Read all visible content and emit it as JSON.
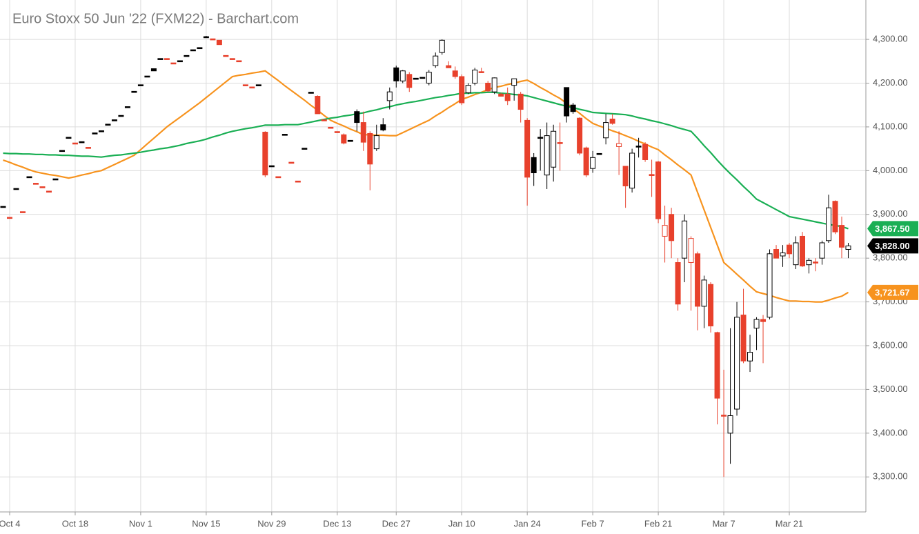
{
  "chart_data": {
    "type": "candlestick",
    "title": "Euro Stoxx 50 Jun '22 (FXM22) - Barchart.com",
    "categories": [
      null,
      "Oct 4",
      null,
      null,
      null,
      null,
      null,
      null,
      null,
      null,
      null,
      "Oct 18",
      null,
      null,
      null,
      null,
      null,
      null,
      null,
      null,
      null,
      "Nov 1",
      null,
      null,
      null,
      null,
      null,
      null,
      null,
      null,
      null,
      "Nov 15",
      null,
      null,
      null,
      null,
      null,
      null,
      null,
      null,
      null,
      "Nov 29",
      null,
      null,
      null,
      null,
      null,
      null,
      null,
      null,
      null,
      "Dec 13",
      null,
      null,
      null,
      null,
      null,
      null,
      null,
      null,
      "Dec 27",
      null,
      null,
      null,
      null,
      null,
      null,
      null,
      null,
      null,
      "Jan 10",
      null,
      null,
      null,
      null,
      null,
      null,
      null,
      null,
      null,
      "Jan 24",
      null,
      null,
      null,
      null,
      null,
      null,
      null,
      null,
      null,
      "Feb 7",
      null,
      null,
      null,
      null,
      null,
      null,
      null,
      null,
      null,
      "Feb 21",
      null,
      null,
      null,
      null,
      null,
      null,
      null,
      null,
      null,
      "Mar 7",
      null,
      null,
      null,
      null,
      null,
      null,
      null,
      null,
      null,
      "Mar 21",
      null,
      null,
      null,
      null,
      null,
      null,
      null,
      null,
      null
    ],
    "ohlc": [
      [
        3917,
        3917,
        3917,
        3917
      ],
      [
        3892,
        3892,
        3890,
        3890
      ],
      [
        3958,
        3958,
        3958,
        3958
      ],
      [
        3905,
        3905,
        3905,
        3905
      ],
      [
        3985,
        3985,
        3985,
        3985
      ],
      [
        3970,
        3970,
        3970,
        3970
      ],
      [
        3962,
        3962,
        3962,
        3962
      ],
      [
        3952,
        3952,
        3952,
        3952
      ],
      [
        3980,
        3980,
        3980,
        3980
      ],
      [
        4045,
        4045,
        4045,
        4045
      ],
      [
        4075,
        4075,
        4075,
        4075
      ],
      [
        4062,
        4062,
        4062,
        4062
      ],
      [
        4065,
        4065,
        4065,
        4065
      ],
      [
        4052,
        4052,
        4052,
        4052
      ],
      [
        4085,
        4085,
        4085,
        4085
      ],
      [
        4090,
        4090,
        4090,
        4090
      ],
      [
        4105,
        4105,
        4105,
        4105
      ],
      [
        4115,
        4115,
        4115,
        4115
      ],
      [
        4125,
        4125,
        4125,
        4125
      ],
      [
        4145,
        4145,
        4145,
        4145
      ],
      [
        4180,
        4180,
        4180,
        4180
      ],
      [
        4195,
        4195,
        4195,
        4195
      ],
      [
        4215,
        4215,
        4215,
        4215
      ],
      [
        4233,
        4233,
        4228,
        4228
      ],
      [
        4255,
        4255,
        4255,
        4255
      ],
      [
        4255,
        4255,
        4253,
        4253
      ],
      [
        4245,
        4245,
        4245,
        4245
      ],
      [
        4250,
        4250,
        4250,
        4250
      ],
      [
        4262,
        4262,
        4262,
        4262
      ],
      [
        4275,
        4275,
        4275,
        4275
      ],
      [
        4280,
        4280,
        4280,
        4280
      ],
      [
        4305,
        4308,
        4305,
        4305
      ],
      [
        4300,
        4300,
        4300,
        4300
      ],
      [
        4298,
        4298,
        4288,
        4288
      ],
      [
        4262,
        4262,
        4262,
        4262
      ],
      [
        4255,
        4255,
        4255,
        4255
      ],
      [
        4250,
        4250,
        4250,
        4250
      ],
      [
        4195,
        4195,
        4195,
        4195
      ],
      [
        4190,
        4190,
        4190,
        4190
      ],
      [
        4195,
        4195,
        4195,
        4195
      ],
      [
        4088,
        4090,
        3985,
        3990
      ],
      [
        4010,
        4010,
        4010,
        4010
      ],
      [
        3985,
        3985,
        3985,
        3985
      ],
      [
        4082,
        4082,
        4082,
        4082
      ],
      [
        4018,
        4018,
        4018,
        4018
      ],
      [
        3975,
        3975,
        3975,
        3975
      ],
      [
        4050,
        4050,
        4050,
        4050
      ],
      [
        4178,
        4178,
        4178,
        4178
      ],
      [
        4170,
        4172,
        4130,
        4130
      ],
      [
        4115,
        4115,
        4115,
        4115
      ],
      [
        4098,
        4098,
        4098,
        4098
      ],
      [
        4088,
        4088,
        4088,
        4088
      ],
      [
        4082,
        4085,
        4060,
        4063
      ],
      [
        4068,
        4068,
        4068,
        4068
      ],
      [
        4135,
        4140,
        4090,
        4110
      ],
      [
        4110,
        4135,
        4045,
        4065
      ],
      [
        4085,
        4090,
        3955,
        4015
      ],
      [
        4050,
        4105,
        4045,
        4080
      ],
      [
        4105,
        4120,
        4090,
        4093
      ],
      [
        4160,
        4190,
        4140,
        4180
      ],
      [
        4235,
        4240,
        4190,
        4205
      ],
      [
        4205,
        4230,
        4200,
        4228
      ],
      [
        4220,
        4225,
        4180,
        4190
      ],
      [
        4210,
        4210,
        4210,
        4210
      ],
      [
        4212,
        4212,
        4212,
        4212
      ],
      [
        4200,
        4230,
        4195,
        4225
      ],
      [
        4240,
        4270,
        4235,
        4262
      ],
      [
        4270,
        4300,
        4265,
        4298
      ],
      [
        4240,
        4250,
        4235,
        4235
      ],
      [
        4228,
        4238,
        4210,
        4215
      ],
      [
        4215,
        4220,
        4150,
        4155
      ],
      [
        4178,
        4200,
        4175,
        4195
      ],
      [
        4200,
        4235,
        4195,
        4230
      ],
      [
        4225,
        4235,
        4225,
        4225
      ],
      [
        4200,
        4205,
        4180,
        4182
      ],
      [
        4180,
        4213,
        4175,
        4212
      ],
      [
        4175,
        4178,
        4170,
        4170
      ],
      [
        4175,
        4190,
        4150,
        4160
      ],
      [
        4195,
        4210,
        4160,
        4210
      ],
      [
        4175,
        4180,
        4110,
        4140
      ],
      [
        4115,
        4120,
        3920,
        3985
      ],
      [
        4030,
        4040,
        3965,
        3995
      ],
      [
        4075,
        4095,
        4000,
        4073
      ],
      [
        3990,
        4110,
        3958,
        4080
      ],
      [
        4008,
        4105,
        3975,
        4090
      ],
      [
        4063,
        4110,
        4000,
        4063
      ],
      [
        4190,
        4190,
        4110,
        4125
      ],
      [
        4150,
        4155,
        4130,
        4135
      ],
      [
        4120,
        4122,
        4035,
        4040
      ],
      [
        4052,
        4055,
        3985,
        3990
      ],
      [
        4005,
        4045,
        3995,
        4030
      ],
      [
        4038,
        4038,
        4038,
        4038
      ],
      [
        4075,
        4130,
        4060,
        4110
      ],
      [
        4118,
        4130,
        4105,
        4108
      ],
      [
        4055,
        4090,
        3990,
        4062
      ],
      [
        4010,
        4010,
        3915,
        3965
      ],
      [
        3960,
        4050,
        3950,
        4040
      ],
      [
        4055,
        4075,
        4030,
        4055
      ],
      [
        4060,
        4065,
        4020,
        4025
      ],
      [
        3990,
        4025,
        3940,
        3990
      ],
      [
        4020,
        4022,
        3880,
        3890
      ],
      [
        3850,
        3920,
        3790,
        3875
      ],
      [
        3900,
        3915,
        3800,
        3840
      ],
      [
        3790,
        3800,
        3680,
        3695
      ],
      [
        3800,
        3900,
        3745,
        3885
      ],
      [
        3790,
        3850,
        3680,
        3845
      ],
      [
        3810,
        3815,
        3635,
        3690
      ],
      [
        3690,
        3760,
        3640,
        3750
      ],
      [
        3740,
        3745,
        3630,
        3645
      ],
      [
        3630,
        3632,
        3420,
        3480
      ],
      [
        3440,
        3545,
        3300,
        3440
      ],
      [
        3400,
        3640,
        3330,
        3440
      ],
      [
        3455,
        3700,
        3440,
        3665
      ],
      [
        3670,
        3730,
        3560,
        3565
      ],
      [
        3565,
        3625,
        3540,
        3585
      ],
      [
        3640,
        3665,
        3590,
        3660
      ],
      [
        3660,
        3670,
        3560,
        3655
      ],
      [
        3665,
        3820,
        3660,
        3810
      ],
      [
        3820,
        3830,
        3800,
        3800
      ],
      [
        3805,
        3830,
        3780,
        3812
      ],
      [
        3830,
        3835,
        3800,
        3810
      ],
      [
        3785,
        3850,
        3775,
        3835
      ],
      [
        3850,
        3860,
        3780,
        3782
      ],
      [
        3785,
        3800,
        3765,
        3795
      ],
      [
        3790,
        3800,
        3770,
        3790
      ],
      [
        3800,
        3840,
        3785,
        3835
      ],
      [
        3840,
        3945,
        3835,
        3915
      ],
      [
        3930,
        3932,
        3855,
        3860
      ],
      [
        3875,
        3895,
        3800,
        3825
      ],
      [
        3820,
        3835,
        3800,
        3828
      ]
    ],
    "close_label": "3,828.00",
    "up_color": "#000000",
    "down_color": "#e8412c",
    "series": [
      {
        "color": "#f7931e",
        "last_label": "3,721.67",
        "values": [
          4024,
          4019,
          4013,
          4008,
          4002,
          3997,
          3994,
          3991,
          3989,
          3986,
          3983,
          3986,
          3990,
          3993,
          3997,
          4000,
          4007,
          4014,
          4021,
          4028,
          4035,
          4048,
          4061,
          4074,
          4087,
          4100,
          4111,
          4122,
          4133,
          4144,
          4155,
          4167,
          4179,
          4191,
          4203,
          4215,
          4218,
          4220,
          4223,
          4225,
          4228,
          4217,
          4206,
          4194,
          4183,
          4172,
          4161,
          4149,
          4138,
          4126,
          4115,
          4108,
          4102,
          4095,
          4089,
          4082,
          4082,
          4081,
          4081,
          4080,
          4080,
          4087,
          4094,
          4101,
          4108,
          4115,
          4125,
          4134,
          4144,
          4153,
          4163,
          4168,
          4174,
          4179,
          4185,
          4190,
          4193,
          4197,
          4200,
          4204,
          4207,
          4199,
          4190,
          4182,
          4173,
          4165,
          4154,
          4142,
          4131,
          4119,
          4108,
          4102,
          4097,
          4091,
          4086,
          4080,
          4074,
          4067,
          4061,
          4054,
          4048,
          4036,
          4025,
          4013,
          4002,
          3990,
          3950,
          3910,
          3870,
          3830,
          3790,
          3777,
          3763,
          3750,
          3736,
          3723,
          3719,
          3715,
          3710,
          3706,
          3702,
          3702,
          3701,
          3701,
          3700,
          3700,
          3704,
          3709,
          3713,
          3721.67
        ]
      },
      {
        "color": "#1aaf54",
        "last_label": "3,867.50",
        "values": [
          4040,
          4039,
          4039,
          4038,
          4038,
          4037,
          4037,
          4036,
          4036,
          4035,
          4035,
          4034,
          4033,
          4033,
          4032,
          4031,
          4033,
          4035,
          4036,
          4038,
          4040,
          4042,
          4045,
          4047,
          4050,
          4052,
          4055,
          4058,
          4062,
          4065,
          4068,
          4072,
          4077,
          4081,
          4086,
          4090,
          4093,
          4096,
          4098,
          4101,
          4104,
          4104,
          4104,
          4105,
          4105,
          4105,
          4108,
          4111,
          4114,
          4117,
          4120,
          4122,
          4125,
          4127,
          4130,
          4132,
          4136,
          4139,
          4143,
          4146,
          4150,
          4153,
          4156,
          4158,
          4161,
          4164,
          4167,
          4169,
          4172,
          4174,
          4177,
          4177,
          4178,
          4178,
          4179,
          4179,
          4177,
          4176,
          4174,
          4173,
          4171,
          4167,
          4163,
          4159,
          4155,
          4151,
          4147,
          4144,
          4140,
          4137,
          4133,
          4132,
          4131,
          4130,
          4129,
          4128,
          4125,
          4121,
          4118,
          4114,
          4111,
          4107,
          4103,
          4098,
          4094,
          4090,
          4074,
          4057,
          4041,
          4024,
          4008,
          3993,
          3979,
          3964,
          3950,
          3935,
          3927,
          3919,
          3911,
          3903,
          3895,
          3892,
          3889,
          3886,
          3883,
          3880,
          3877,
          3875,
          3872,
          3867.5
        ]
      }
    ],
    "ylim": [
      3220,
      4390
    ],
    "yticks": [
      {
        "value": 3300,
        "label": "3,300.00"
      },
      {
        "value": 3400,
        "label": "3,400.00"
      },
      {
        "value": 3500,
        "label": "3,500.00"
      },
      {
        "value": 3600,
        "label": "3,600.00"
      },
      {
        "value": 3700,
        "label": "3,700.00"
      },
      {
        "value": 3800,
        "label": "3,800.00"
      },
      {
        "value": 3900,
        "label": "3,900.00"
      },
      {
        "value": 4000,
        "label": "4,000.00"
      },
      {
        "value": 4100,
        "label": "4,100.00"
      },
      {
        "value": 4200,
        "label": "4,200.00"
      },
      {
        "value": 4300,
        "label": "4,300.00"
      }
    ],
    "grid": true
  }
}
